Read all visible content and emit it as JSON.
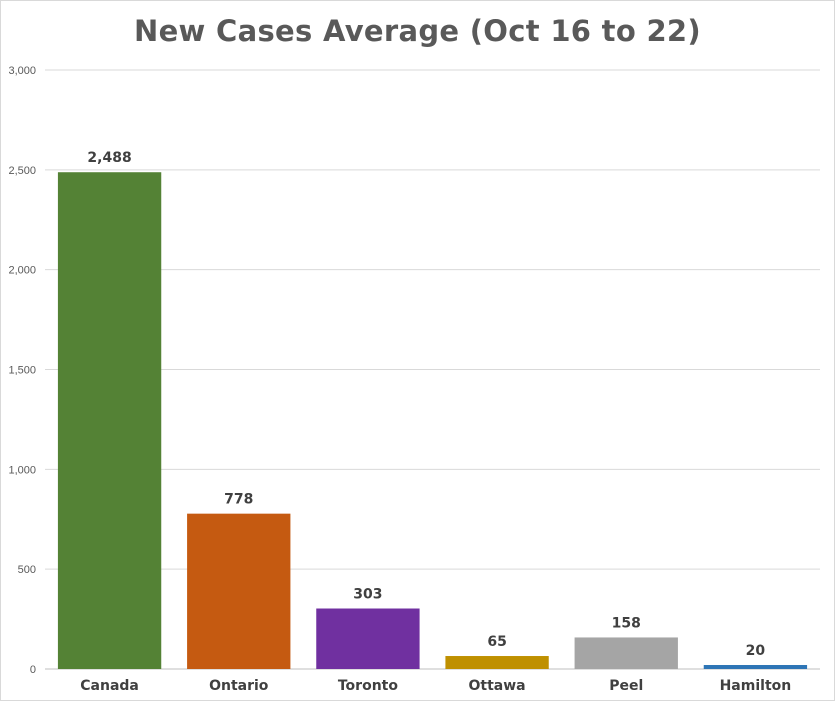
{
  "chart_data": {
    "type": "bar",
    "title": "New Cases Average (Oct 16 to 22)",
    "xlabel": "",
    "ylabel": "",
    "categories": [
      "Canada",
      "Ontario",
      "Toronto",
      "Ottawa",
      "Peel",
      "Hamilton"
    ],
    "values": [
      2488,
      778,
      303,
      65,
      158,
      20
    ],
    "data_labels": [
      "2,488",
      "778",
      "303",
      "65",
      "158",
      "20"
    ],
    "bar_colors": [
      "#548235",
      "#c55a11",
      "#7030a0",
      "#bf9000",
      "#a5a5a5",
      "#2e75b6"
    ],
    "ylim": [
      0,
      3000
    ],
    "yticks": [
      0,
      500,
      1000,
      1500,
      2000,
      2500,
      3000
    ],
    "ytick_labels": [
      "0",
      "500",
      "1,000",
      "1,500",
      "2,000",
      "2,500",
      "3,000"
    ],
    "grid": true,
    "legend": "none"
  }
}
